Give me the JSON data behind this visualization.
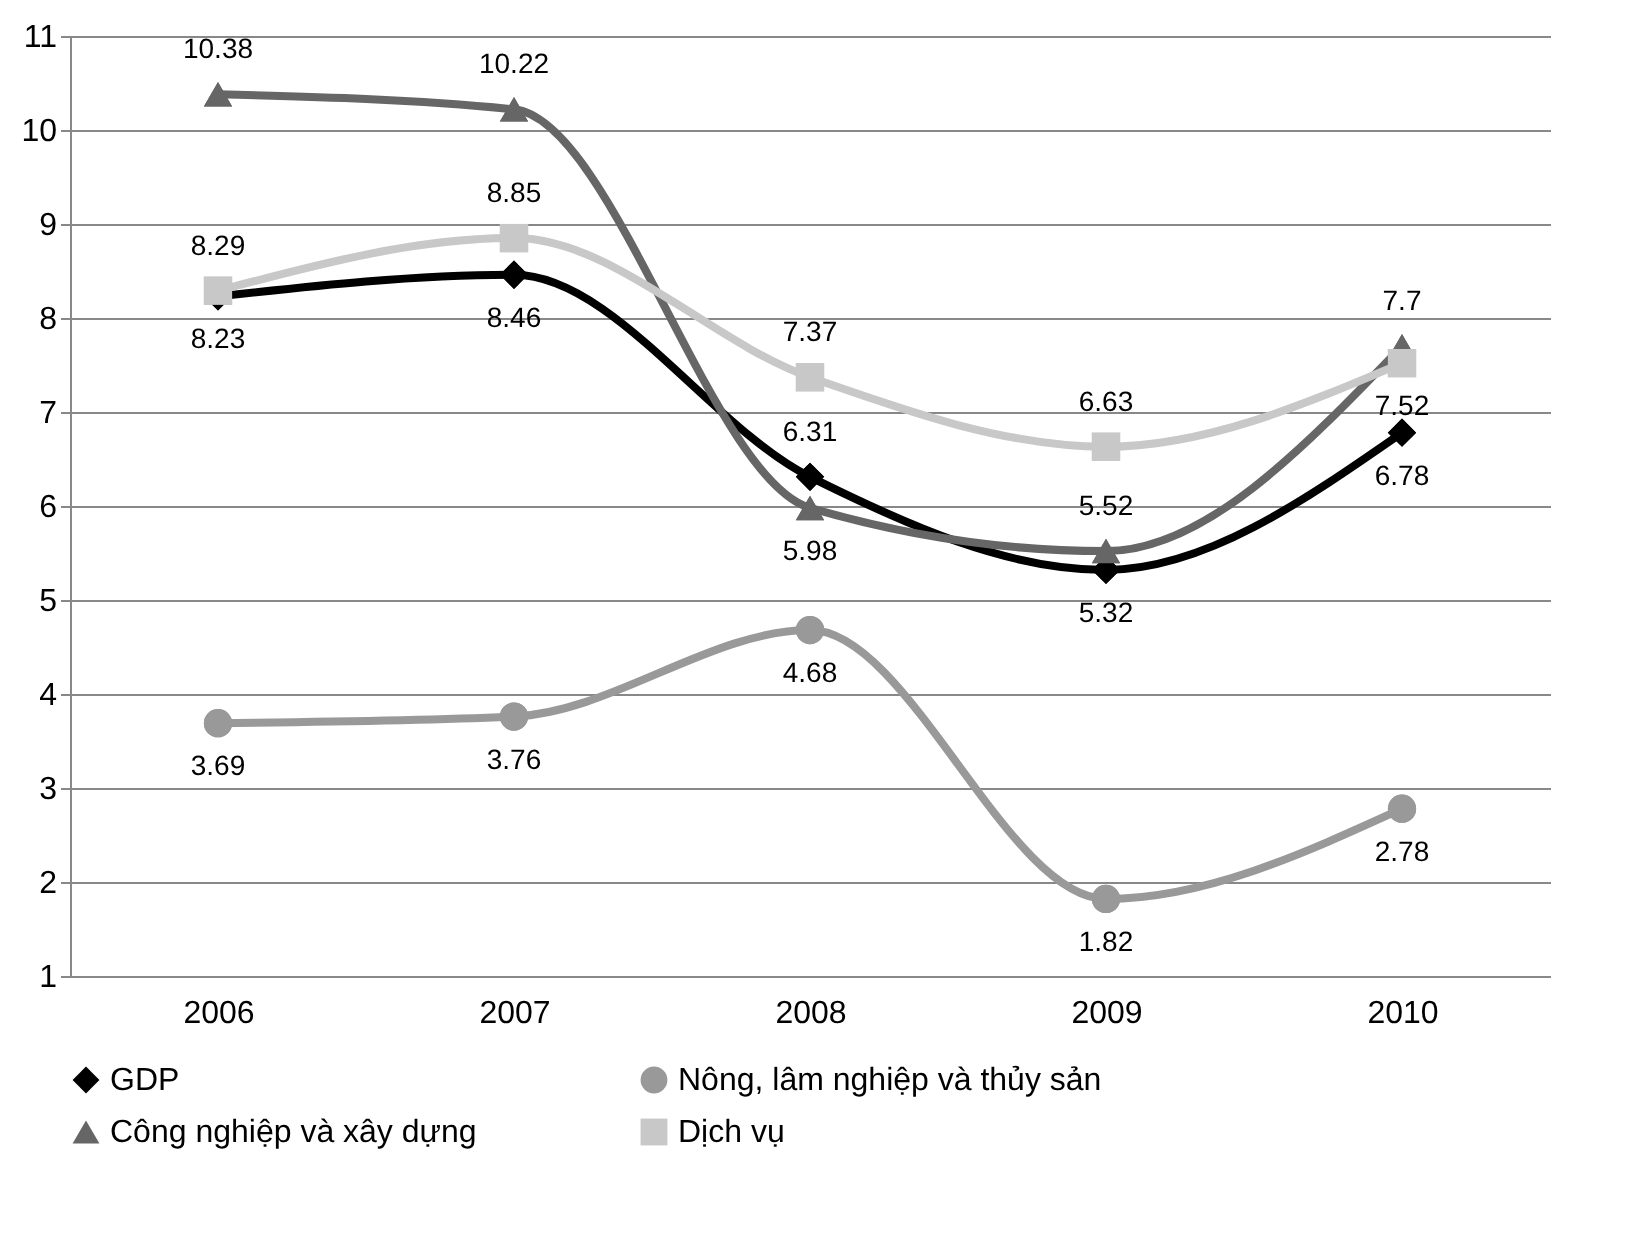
{
  "chart_data": {
    "type": "line",
    "categories": [
      "2006",
      "2007",
      "2008",
      "2009",
      "2010"
    ],
    "series": [
      {
        "name": "GDP",
        "color": "#000000",
        "marker": "diamond",
        "values": [
          8.23,
          8.46,
          6.31,
          5.32,
          6.78
        ]
      },
      {
        "name": "Nông, lâm nghiệp và thủy sản",
        "color": "#999999",
        "marker": "circle",
        "values": [
          3.69,
          3.76,
          4.68,
          1.82,
          2.78
        ]
      },
      {
        "name": "Công nghiệp và xây dựng",
        "color": "#666666",
        "marker": "triangle",
        "values": [
          10.38,
          10.22,
          5.98,
          5.52,
          7.7
        ]
      },
      {
        "name": "Dịch vụ",
        "color": "#c8c8c8",
        "marker": "square",
        "values": [
          8.29,
          8.85,
          7.37,
          6.63,
          7.52
        ]
      }
    ],
    "ylim": [
      1,
      11
    ],
    "yticks": [
      1,
      2,
      3,
      4,
      5,
      6,
      7,
      8,
      9,
      10,
      11
    ],
    "grid": "y",
    "legend": "bottom",
    "data_labels": true
  }
}
